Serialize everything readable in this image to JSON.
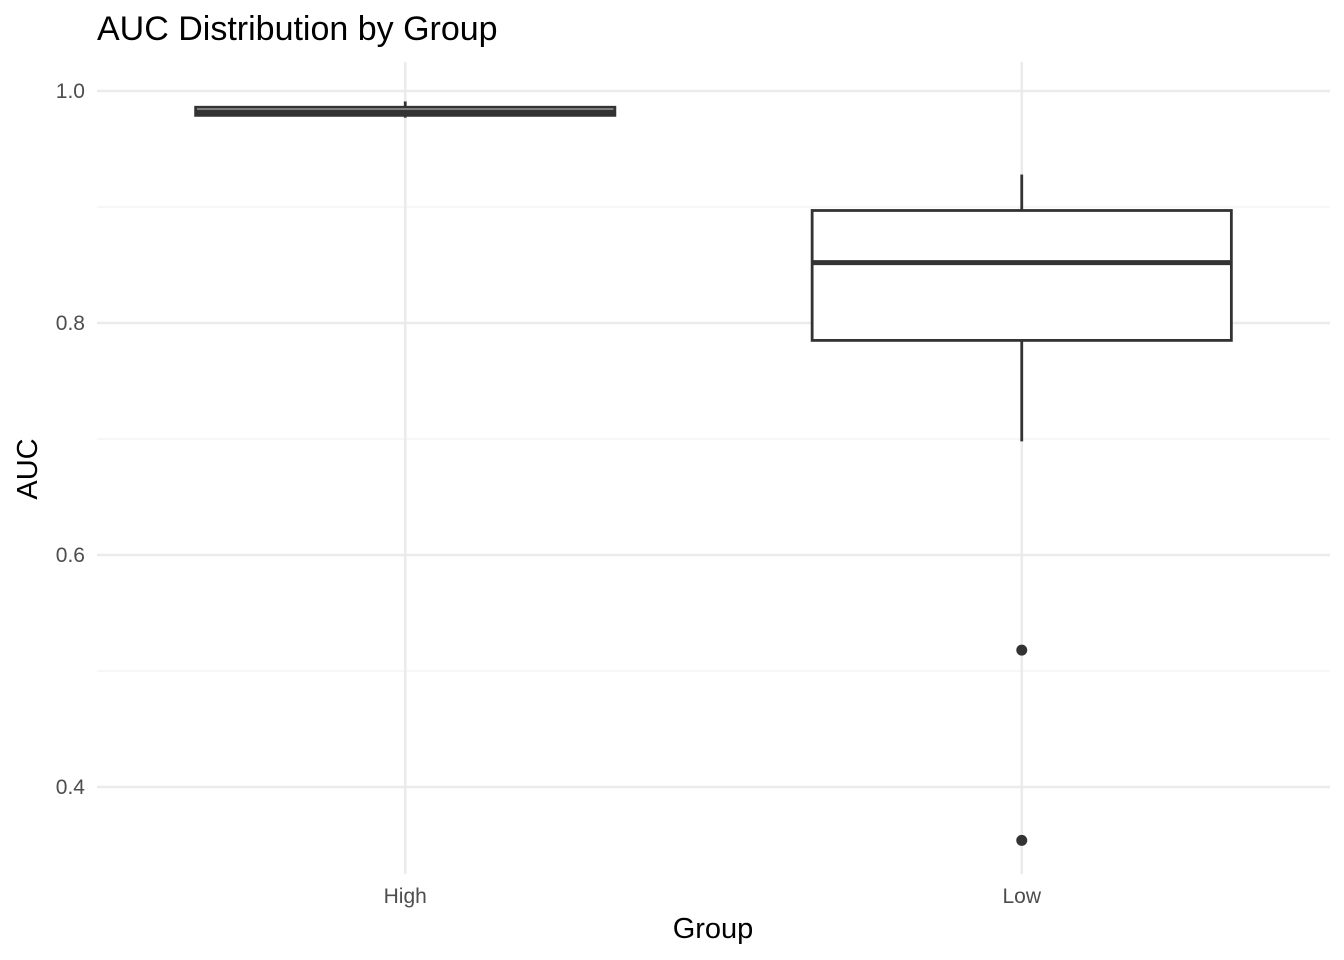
{
  "chart_data": {
    "type": "boxplot",
    "title": "AUC Distribution by Group",
    "xlabel": "Group",
    "ylabel": "AUC",
    "categories": [
      "High",
      "Low"
    ],
    "ylim": [
      0.325,
      1.025
    ],
    "y_ticks": [
      0.4,
      0.6,
      0.8,
      1.0
    ],
    "y_tick_labels": [
      "0.4",
      "0.6",
      "0.8",
      "1.0"
    ],
    "grid": true,
    "legend": "none",
    "boxes": [
      {
        "group": "High",
        "whisker_low": 0.977,
        "q1": 0.979,
        "median": 0.982,
        "q3": 0.986,
        "whisker_high": 0.991,
        "outliers": []
      },
      {
        "group": "Low",
        "whisker_low": 0.698,
        "q1": 0.785,
        "median": 0.852,
        "q3": 0.897,
        "whisker_high": 0.928,
        "outliers": [
          0.518,
          0.354
        ]
      }
    ],
    "colors": {
      "box_stroke": "#333333",
      "box_fill": "#ffffff",
      "grid_major": "#ebebeb",
      "grid_minor": "#f2f2f2",
      "tick_text": "#4d4d4d"
    }
  }
}
